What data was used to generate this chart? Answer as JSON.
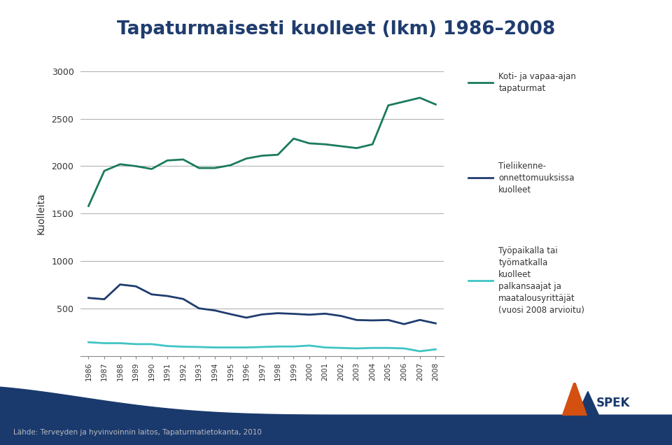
{
  "title": "Tapaturmaisesti kuolleet (lkm) 1986–2008",
  "ylabel": "Kuolleita",
  "years": [
    1986,
    1987,
    1988,
    1989,
    1990,
    1991,
    1992,
    1993,
    1994,
    1995,
    1996,
    1997,
    1998,
    1999,
    2000,
    2001,
    2002,
    2003,
    2004,
    2005,
    2006,
    2007,
    2008
  ],
  "koti_vapaa": [
    1580,
    1950,
    2020,
    2000,
    1970,
    2060,
    2070,
    1980,
    1980,
    2010,
    2080,
    2110,
    2120,
    2290,
    2240,
    2230,
    2210,
    2190,
    2230,
    2640,
    2680,
    2720,
    2650
  ],
  "tieliikenne": [
    612,
    598,
    753,
    734,
    649,
    632,
    601,
    502,
    480,
    441,
    404,
    438,
    451,
    444,
    435,
    446,
    422,
    379,
    375,
    379,
    336,
    380,
    344
  ],
  "tyopaikka": [
    145,
    135,
    135,
    125,
    125,
    105,
    98,
    95,
    90,
    90,
    90,
    95,
    100,
    100,
    110,
    90,
    85,
    80,
    85,
    85,
    80,
    50,
    70
  ],
  "koti_color": "#1a7a5e",
  "tieliikenne_color": "#1f3c6e",
  "tyopaikka_color": "#40c4c4",
  "background_color": "#ffffff",
  "title_color": "#1f3c6e",
  "ylim": [
    0,
    3000
  ],
  "yticks": [
    0,
    500,
    1000,
    1500,
    2000,
    2500,
    3000
  ],
  "footer_text": "Lähde: Terveyden ja hyvinvoinnin laitos, Tapaturmatietokanta, 2010",
  "legend_koti": "Koti- ja vapaa-ajan\ntapaturmat",
  "legend_tieliikenne": "Tieliikenne-\nonnettomuuksissa\nkuolleet",
  "legend_tyopaikka": "Työpaikalla tai\ntyömatkalla\nkuolleet\npalkansaajat ja\nmaatalousyrittäjät\n(vuosi 2008 arvioitu)",
  "footer_color": "#1a3a6e",
  "footer_text_color": "#bbbbbb"
}
